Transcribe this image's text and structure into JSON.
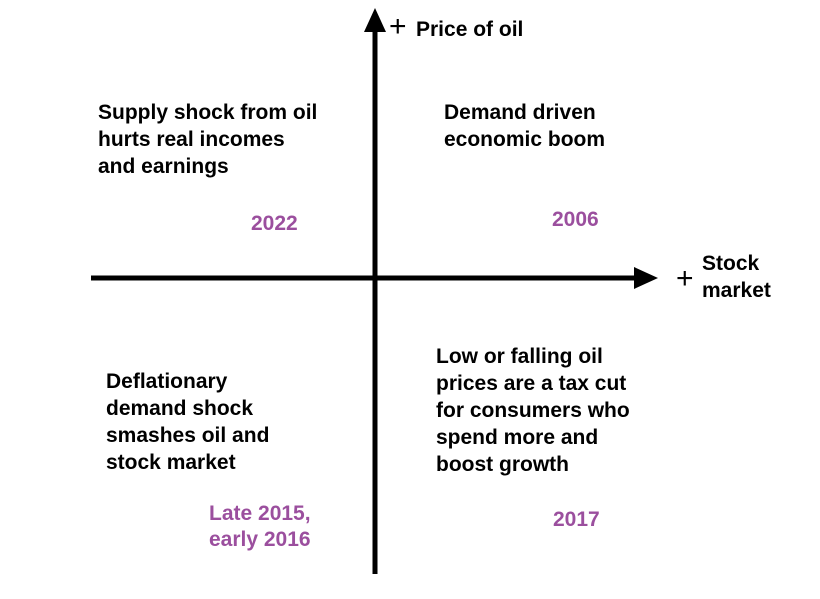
{
  "axes": {
    "y_label": "Price of oil",
    "y_sign": "+",
    "x_label": "Stock\nmarket",
    "x_sign": "+"
  },
  "quadrants": {
    "top_left": {
      "text": "Supply shock from oil\nhurts real incomes\nand earnings",
      "year": "2022"
    },
    "top_right": {
      "text": "Demand driven\neconomic boom",
      "year": "2006"
    },
    "bottom_left": {
      "text": "Deflationary\ndemand shock\nsmashes oil and\nstock market",
      "year": "Late 2015,\nearly 2016"
    },
    "bottom_right": {
      "text": "Low or falling oil\nprices are a tax cut\nfor consumers who\nspend more and\nboost growth",
      "year": "2017"
    }
  },
  "colors": {
    "year": "#9b4f9e",
    "axis": "#000000"
  }
}
